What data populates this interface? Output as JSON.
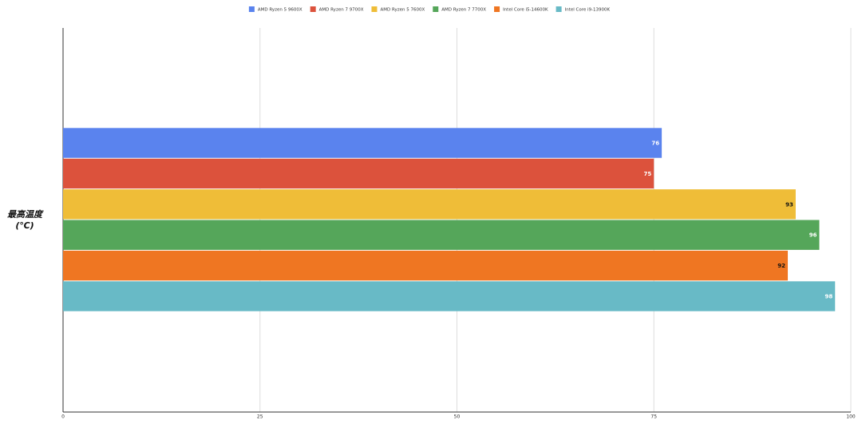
{
  "chart_data": {
    "type": "hbar",
    "categories": [
      "最高温度\n(℃)"
    ],
    "series": [
      {
        "name": "AMD Ryzen 5 9600X",
        "color": "#5a83ee",
        "values": [
          76
        ]
      },
      {
        "name": "AMD Ryzen 7 9700X",
        "color": "#dc523c",
        "values": [
          75
        ]
      },
      {
        "name": "AMD Ryzen 5 7600X",
        "color": "#efbd38",
        "values": [
          93
        ]
      },
      {
        "name": "AMD Ryzen 7 7700X",
        "color": "#55a65a",
        "values": [
          96
        ]
      },
      {
        "name": "Intel Core i5-14600K",
        "color": "#ef7622",
        "values": [
          92
        ]
      },
      {
        "name": "Intel Core i9-13900K",
        "color": "#68bac6",
        "values": [
          98
        ]
      }
    ],
    "xlim": [
      0,
      100
    ],
    "xticks": [
      0,
      25,
      50,
      75,
      100
    ],
    "grid": true,
    "legend": "top"
  }
}
